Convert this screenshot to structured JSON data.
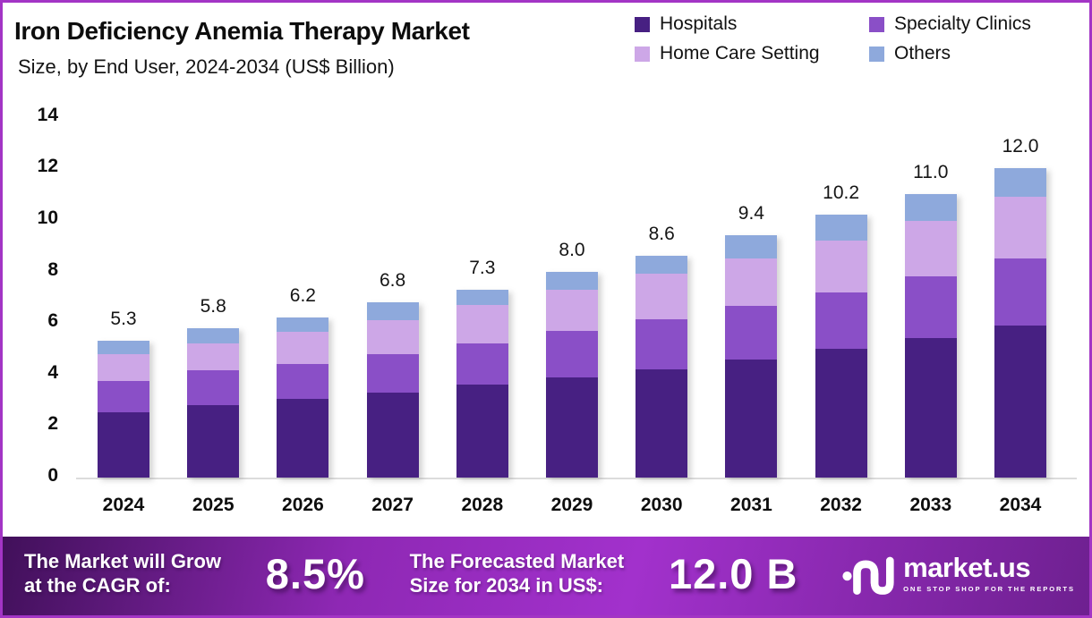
{
  "frame": {
    "border_color": "#a335c5",
    "background": "#ffffff"
  },
  "header": {
    "title": "Iron Deficiency Anemia Therapy Market",
    "subtitle": "Size, by End User, 2024-2034 (US$ Billion)"
  },
  "legend": {
    "items": [
      {
        "id": "hospitals",
        "label": "Hospitals",
        "color": "#472082"
      },
      {
        "id": "specialty-clinics",
        "label": "Specialty Clinics",
        "color": "#8a4fc7"
      },
      {
        "id": "home-care-setting",
        "label": "Home Care Setting",
        "color": "#cda7e7"
      },
      {
        "id": "others",
        "label": "Others",
        "color": "#8ea9dc"
      }
    ]
  },
  "chart_data": {
    "type": "bar",
    "stacked": true,
    "title": "Iron Deficiency Anemia Therapy Market Size, by End User, 2024-2034 (US$ Billion)",
    "categories": [
      "2024",
      "2025",
      "2026",
      "2027",
      "2028",
      "2029",
      "2030",
      "2031",
      "2032",
      "2033",
      "2034"
    ],
    "series": [
      {
        "name": "Hospitals",
        "color": "#472082",
        "values": [
          2.55,
          2.8,
          3.05,
          3.3,
          3.6,
          3.9,
          4.2,
          4.6,
          5.0,
          5.4,
          5.9
        ]
      },
      {
        "name": "Specialty Clinics",
        "color": "#8a4fc7",
        "values": [
          1.2,
          1.35,
          1.35,
          1.5,
          1.6,
          1.8,
          1.95,
          2.05,
          2.2,
          2.4,
          2.6
        ]
      },
      {
        "name": "Home Care Setting",
        "color": "#cda7e7",
        "values": [
          1.05,
          1.05,
          1.25,
          1.3,
          1.5,
          1.6,
          1.75,
          1.85,
          2.0,
          2.15,
          2.4
        ]
      },
      {
        "name": "Others",
        "color": "#8ea9dc",
        "values": [
          0.5,
          0.6,
          0.55,
          0.7,
          0.6,
          0.7,
          0.7,
          0.9,
          1.0,
          1.05,
          1.1
        ]
      }
    ],
    "totals": [
      5.3,
      5.8,
      6.2,
      6.8,
      7.3,
      8.0,
      8.6,
      9.4,
      10.2,
      11.0,
      12.0
    ],
    "total_labels": [
      "5.3",
      "5.8",
      "6.2",
      "6.8",
      "7.3",
      "8.0",
      "8.6",
      "9.4",
      "10.2",
      "11.0",
      "12.0"
    ],
    "xlabel": "",
    "ylabel": "",
    "ylim": [
      0,
      14
    ],
    "yticks": [
      0,
      2,
      4,
      6,
      8,
      10,
      12,
      14
    ],
    "grid": false,
    "legend_position": "top-right"
  },
  "footer": {
    "cagr_label_line1": "The Market will Grow",
    "cagr_label_line2": "at the CAGR of:",
    "cagr_value": "8.5%",
    "forecast_label_line1": "The Forecasted Market",
    "forecast_label_line2": "Size for 2034 in US$:",
    "forecast_value": "12.0 B",
    "logo": {
      "text": "market.us",
      "tagline": "ONE STOP SHOP FOR THE REPORTS"
    },
    "gradient_stops": [
      "#41105a",
      "#8e28b4",
      "#a231cc",
      "#6e2090"
    ]
  }
}
